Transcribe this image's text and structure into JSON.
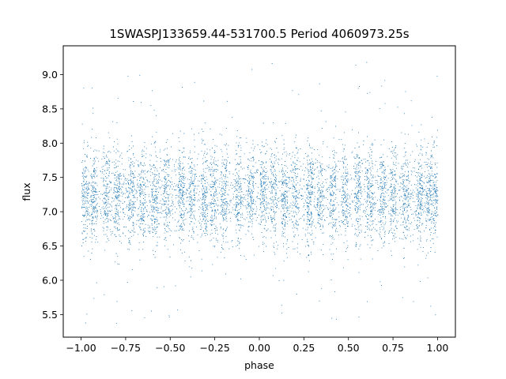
{
  "chart_data": {
    "type": "scatter",
    "title": "1SWASPJ133659.44-531700.5 Period 4060973.25s",
    "xlabel": "phase",
    "ylabel": "flux",
    "xlim": [
      -1.1,
      1.1
    ],
    "ylim": [
      5.17,
      9.42
    ],
    "xticks": [
      -1.0,
      -0.75,
      -0.5,
      -0.25,
      0.0,
      0.25,
      0.5,
      0.75,
      1.0
    ],
    "xtick_labels": [
      "−1.00",
      "−0.75",
      "−0.50",
      "−0.25",
      "0.00",
      "0.25",
      "0.50",
      "0.75",
      "1.00"
    ],
    "yticks": [
      5.5,
      6.0,
      6.5,
      7.0,
      7.5,
      8.0,
      8.5,
      9.0
    ],
    "ytick_labels": [
      "5.5",
      "6.0",
      "6.5",
      "7.0",
      "7.5",
      "8.0",
      "8.5",
      "9.0"
    ],
    "grid": false,
    "marker_color": "#1f77b4",
    "series": [
      {
        "phase_range": [
          -1.0,
          1.0
        ],
        "flux_center": 7.25,
        "flux_core_range": [
          6.3,
          8.1
        ],
        "flux_outlier_range": [
          5.35,
          9.2
        ],
        "dense_bands_phase": [
          -0.98,
          -0.93,
          -0.86,
          -0.8,
          -0.72,
          -0.66,
          -0.59,
          -0.52,
          -0.44,
          -0.38,
          -0.31,
          -0.26,
          -0.2,
          -0.12,
          -0.05,
          0.02,
          0.08,
          0.14,
          0.2,
          0.28,
          0.34,
          0.41,
          0.48,
          0.55,
          0.62,
          0.69,
          0.75,
          0.82,
          0.9,
          0.95,
          0.99
        ]
      }
    ]
  }
}
